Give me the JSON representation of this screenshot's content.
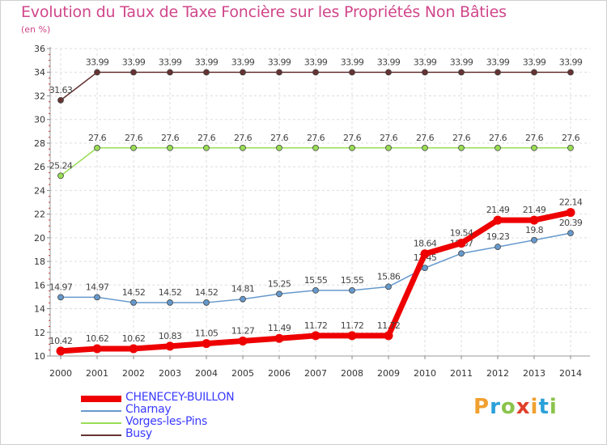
{
  "title": "Evolution du Taux de Taxe Foncière sur les Propriétés Non Bâties",
  "subtitle": "(en %)",
  "logo": {
    "letters": [
      "P",
      "r",
      "o",
      "x",
      "i",
      "t",
      "i"
    ],
    "colors": [
      "#f0a030",
      "#2aa0d8",
      "#8bc34a",
      "#e0402a",
      "#f0a030",
      "#2aa0d8",
      "#8bc34a"
    ]
  },
  "chart_data": {
    "type": "line",
    "title": "Evolution du Taux de Taxe Foncière sur les Propriétés Non Bâties",
    "ylabel": "(en %)",
    "xlabel": "",
    "ylim": [
      10,
      36
    ],
    "yticks": [
      10,
      12,
      14,
      16,
      18,
      20,
      22,
      24,
      26,
      28,
      30,
      32,
      34,
      36
    ],
    "grid": true,
    "categories": [
      "2000",
      "2001",
      "2002",
      "2003",
      "2004",
      "2005",
      "2006",
      "2007",
      "2008",
      "2009",
      "2010",
      "2011",
      "2012",
      "2013",
      "2014"
    ],
    "series": [
      {
        "name": "CHENECEY-BUILLON",
        "color": "#ee0000",
        "width": 7,
        "marker": 11,
        "values": [
          10.42,
          10.62,
          10.62,
          10.83,
          11.05,
          11.27,
          11.49,
          11.72,
          11.72,
          11.72,
          18.64,
          19.54,
          21.49,
          21.49,
          22.14
        ],
        "labels": [
          "10.42",
          "10.62",
          "10.62",
          "10.83",
          "11.05",
          "11.27",
          "11.49",
          "11.72",
          "11.72",
          "11.72",
          "18.64",
          "19.54",
          "21.49",
          "21.49",
          "22.14"
        ]
      },
      {
        "name": "Charnay",
        "color": "#6699cc",
        "width": 1.5,
        "marker": 3.5,
        "values": [
          14.97,
          14.97,
          14.52,
          14.52,
          14.52,
          14.81,
          15.25,
          15.55,
          15.55,
          15.86,
          17.45,
          18.67,
          19.23,
          19.8,
          20.39
        ],
        "labels": [
          "14.97",
          "14.97",
          "14.52",
          "14.52",
          "14.52",
          "14.81",
          "15.25",
          "15.55",
          "15.55",
          "15.86",
          "17.45",
          "18.67",
          "19.23",
          "19.8",
          "20.39"
        ]
      },
      {
        "name": "Vorges-les-Pins",
        "color": "#99dd55",
        "width": 1.5,
        "marker": 3.5,
        "values": [
          25.24,
          27.6,
          27.6,
          27.6,
          27.6,
          27.6,
          27.6,
          27.6,
          27.6,
          27.6,
          27.6,
          27.6,
          27.6,
          27.6,
          27.6
        ],
        "labels": [
          "25.24",
          "27.6",
          "27.6",
          "27.6",
          "27.6",
          "27.6",
          "27.6",
          "27.6",
          "27.6",
          "27.6",
          "27.6",
          "27.6",
          "27.6",
          "27.6",
          "27.6"
        ]
      },
      {
        "name": "Busy",
        "color": "#663333",
        "width": 1.5,
        "marker": 3.5,
        "values": [
          31.63,
          33.99,
          33.99,
          33.99,
          33.99,
          33.99,
          33.99,
          33.99,
          33.99,
          33.99,
          33.99,
          33.99,
          33.99,
          33.99,
          33.99
        ],
        "labels": [
          "31.63",
          "33.99",
          "33.99",
          "33.99",
          "33.99",
          "33.99",
          "33.99",
          "33.99",
          "33.99",
          "33.99",
          "33.99",
          "33.99",
          "33.99",
          "33.99",
          "33.99"
        ]
      }
    ]
  }
}
